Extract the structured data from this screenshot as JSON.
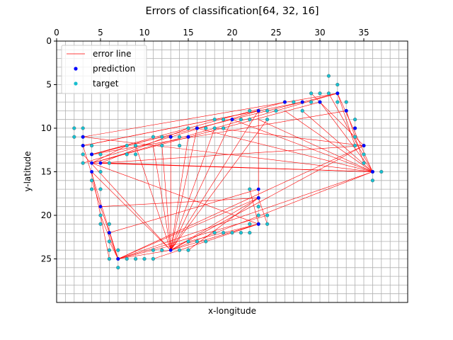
{
  "chart_data": {
    "type": "scatter",
    "title": "Errors of classification[64, 32, 16]",
    "xlabel": "x-longitude",
    "ylabel": "y-latitude",
    "xlim": [
      0,
      40
    ],
    "ylim": [
      30,
      0
    ],
    "x_axis_position": "top",
    "y_axis_inverted": true,
    "x_ticks": [
      0,
      5,
      10,
      15,
      20,
      25,
      30,
      35
    ],
    "y_ticks": [
      0,
      5,
      10,
      15,
      20,
      25
    ],
    "grid": true,
    "grid_step": 1,
    "legend": {
      "placement": "top-left",
      "entries": [
        {
          "label": "error line",
          "kind": "line",
          "color": "#ff0000"
        },
        {
          "label": "prediction",
          "kind": "point",
          "color": "#0000ff"
        },
        {
          "label": "target",
          "kind": "point",
          "color": "#17becf"
        }
      ]
    },
    "series": [
      {
        "name": "prediction",
        "color": "#0000ff",
        "points": [
          [
            3,
            11
          ],
          [
            3,
            12
          ],
          [
            4,
            13
          ],
          [
            4,
            14
          ],
          [
            5,
            14
          ],
          [
            13,
            11
          ],
          [
            16,
            10
          ],
          [
            23,
            8
          ],
          [
            28,
            7
          ],
          [
            32,
            6
          ],
          [
            33,
            8
          ],
          [
            34,
            10
          ],
          [
            35,
            12
          ],
          [
            36,
            15
          ],
          [
            23,
            17
          ],
          [
            23,
            18
          ],
          [
            23,
            21
          ],
          [
            7,
            25
          ],
          [
            13,
            24
          ],
          [
            4,
            15
          ],
          [
            5,
            19
          ],
          [
            6,
            22
          ],
          [
            15,
            11
          ],
          [
            20,
            9
          ],
          [
            26,
            7
          ],
          [
            30,
            7
          ]
        ]
      },
      {
        "name": "target",
        "color": "#17becf",
        "points": [
          [
            2,
            10
          ],
          [
            2,
            11
          ],
          [
            3,
            10
          ],
          [
            3,
            12
          ],
          [
            3,
            13
          ],
          [
            3,
            14
          ],
          [
            4,
            12
          ],
          [
            4,
            13
          ],
          [
            4,
            16
          ],
          [
            4,
            17
          ],
          [
            5,
            13
          ],
          [
            5,
            15
          ],
          [
            5,
            17
          ],
          [
            5,
            20
          ],
          [
            5,
            21
          ],
          [
            6,
            21
          ],
          [
            6,
            22
          ],
          [
            6,
            23
          ],
          [
            6,
            24
          ],
          [
            6,
            25
          ],
          [
            7,
            24
          ],
          [
            7,
            25
          ],
          [
            7,
            26
          ],
          [
            8,
            25
          ],
          [
            9,
            25
          ],
          [
            10,
            25
          ],
          [
            11,
            25
          ],
          [
            11,
            24
          ],
          [
            12,
            24
          ],
          [
            14,
            24
          ],
          [
            15,
            24
          ],
          [
            15,
            23
          ],
          [
            16,
            23
          ],
          [
            17,
            23
          ],
          [
            18,
            22
          ],
          [
            19,
            22
          ],
          [
            20,
            22
          ],
          [
            21,
            22
          ],
          [
            22,
            22
          ],
          [
            22,
            21
          ],
          [
            23,
            20
          ],
          [
            24,
            20
          ],
          [
            24,
            21
          ],
          [
            23,
            21
          ],
          [
            23,
            19
          ],
          [
            23,
            18
          ],
          [
            22,
            17
          ],
          [
            8,
            12
          ],
          [
            8,
            13
          ],
          [
            9,
            12
          ],
          [
            9,
            13
          ],
          [
            11,
            11
          ],
          [
            12,
            12
          ],
          [
            12,
            11
          ],
          [
            13,
            11
          ],
          [
            14,
            11
          ],
          [
            14,
            12
          ],
          [
            15,
            10
          ],
          [
            15,
            11
          ],
          [
            16,
            10
          ],
          [
            17,
            10
          ],
          [
            18,
            9
          ],
          [
            18,
            10
          ],
          [
            19,
            9
          ],
          [
            19,
            10
          ],
          [
            20,
            9
          ],
          [
            21,
            9
          ],
          [
            22,
            8
          ],
          [
            22,
            9
          ],
          [
            23,
            8
          ],
          [
            24,
            8
          ],
          [
            24,
            9
          ],
          [
            25,
            8
          ],
          [
            26,
            7
          ],
          [
            27,
            7
          ],
          [
            28,
            7
          ],
          [
            28,
            8
          ],
          [
            29,
            6
          ],
          [
            29,
            7
          ],
          [
            30,
            6
          ],
          [
            30,
            7
          ],
          [
            31,
            4
          ],
          [
            31,
            6
          ],
          [
            32,
            5
          ],
          [
            32,
            6
          ],
          [
            32,
            7
          ],
          [
            33,
            7
          ],
          [
            33,
            8
          ],
          [
            34,
            9
          ],
          [
            34,
            10
          ],
          [
            34,
            11
          ],
          [
            34,
            12
          ],
          [
            35,
            12
          ],
          [
            35,
            13
          ],
          [
            35,
            14
          ],
          [
            36,
            15
          ],
          [
            36,
            16
          ],
          [
            37,
            15
          ],
          [
            6,
            14
          ],
          [
            3,
            11
          ]
        ]
      }
    ],
    "error_line": {
      "name": "error line",
      "color": "#ff0000",
      "segments": [
        [
          [
            3,
            11
          ],
          [
            32,
            6
          ]
        ],
        [
          [
            3,
            11
          ],
          [
            36,
            15
          ]
        ],
        [
          [
            3,
            12
          ],
          [
            23,
            8
          ]
        ],
        [
          [
            3,
            13
          ],
          [
            13,
            24
          ]
        ],
        [
          [
            4,
            13
          ],
          [
            32,
            6
          ]
        ],
        [
          [
            4,
            14
          ],
          [
            36,
            15
          ]
        ],
        [
          [
            4,
            14
          ],
          [
            30,
            7
          ]
        ],
        [
          [
            4,
            13
          ],
          [
            26,
            7
          ]
        ],
        [
          [
            5,
            14
          ],
          [
            35,
            12
          ]
        ],
        [
          [
            4,
            14
          ],
          [
            23,
            21
          ]
        ],
        [
          [
            4,
            15
          ],
          [
            13,
            24
          ]
        ],
        [
          [
            5,
            19
          ],
          [
            23,
            18
          ]
        ],
        [
          [
            6,
            22
          ],
          [
            23,
            17
          ]
        ],
        [
          [
            7,
            25
          ],
          [
            23,
            18
          ]
        ],
        [
          [
            7,
            25
          ],
          [
            23,
            21
          ]
        ],
        [
          [
            7,
            25
          ],
          [
            24,
            20
          ]
        ],
        [
          [
            7,
            25
          ],
          [
            35,
            12
          ]
        ],
        [
          [
            7,
            25
          ],
          [
            36,
            15
          ]
        ],
        [
          [
            9,
            12
          ],
          [
            13,
            24
          ]
        ],
        [
          [
            11,
            12
          ],
          [
            13,
            24
          ]
        ],
        [
          [
            12,
            12
          ],
          [
            13,
            24
          ]
        ],
        [
          [
            13,
            11
          ],
          [
            13,
            24
          ]
        ],
        [
          [
            15,
            11
          ],
          [
            13,
            24
          ]
        ],
        [
          [
            16,
            10
          ],
          [
            13,
            24
          ]
        ],
        [
          [
            18,
            10
          ],
          [
            13,
            24
          ]
        ],
        [
          [
            20,
            9
          ],
          [
            13,
            24
          ]
        ],
        [
          [
            23,
            8
          ],
          [
            13,
            24
          ]
        ],
        [
          [
            24,
            9
          ],
          [
            13,
            24
          ]
        ],
        [
          [
            13,
            24
          ],
          [
            23,
            18
          ]
        ],
        [
          [
            13,
            24
          ],
          [
            23,
            21
          ]
        ],
        [
          [
            13,
            24
          ],
          [
            36,
            15
          ]
        ],
        [
          [
            13,
            24
          ],
          [
            35,
            12
          ]
        ],
        [
          [
            16,
            10
          ],
          [
            36,
            15
          ]
        ],
        [
          [
            20,
            9
          ],
          [
            36,
            15
          ]
        ],
        [
          [
            23,
            9
          ],
          [
            36,
            15
          ]
        ],
        [
          [
            26,
            8
          ],
          [
            36,
            15
          ]
        ],
        [
          [
            28,
            8
          ],
          [
            36,
            15
          ]
        ],
        [
          [
            30,
            7
          ],
          [
            36,
            15
          ]
        ],
        [
          [
            18,
            10
          ],
          [
            35,
            12
          ]
        ],
        [
          [
            23,
            8
          ],
          [
            23,
            18
          ]
        ],
        [
          [
            5,
            14
          ],
          [
            36,
            15
          ]
        ],
        [
          [
            4,
            13
          ],
          [
            33,
            8
          ]
        ],
        [
          [
            3,
            12
          ],
          [
            28,
            7
          ]
        ],
        [
          [
            3,
            14
          ],
          [
            23,
            8
          ]
        ],
        [
          [
            4,
            16
          ],
          [
            7,
            25
          ]
        ],
        [
          [
            5,
            20
          ],
          [
            7,
            25
          ]
        ],
        [
          [
            6,
            23
          ],
          [
            7,
            25
          ]
        ],
        [
          [
            3,
            12
          ],
          [
            7,
            25
          ]
        ],
        [
          [
            4,
            15
          ],
          [
            6,
            25
          ]
        ],
        [
          [
            8,
            12
          ],
          [
            4,
            14
          ]
        ],
        [
          [
            12,
            11
          ],
          [
            4,
            13
          ]
        ],
        [
          [
            15,
            10
          ],
          [
            5,
            14
          ]
        ],
        [
          [
            7,
            25
          ],
          [
            13,
            24
          ]
        ],
        [
          [
            11,
            25
          ],
          [
            23,
            21
          ]
        ],
        [
          [
            15,
            24
          ],
          [
            23,
            18
          ]
        ],
        [
          [
            32,
            6
          ],
          [
            36,
            15
          ]
        ],
        [
          [
            32,
            6
          ],
          [
            34,
            12
          ]
        ],
        [
          [
            31,
            6
          ],
          [
            36,
            15
          ]
        ],
        [
          [
            29,
            6
          ],
          [
            35,
            12
          ]
        ],
        [
          [
            33,
            8
          ],
          [
            35,
            14
          ]
        ],
        [
          [
            22,
            17
          ],
          [
            23,
            21
          ]
        ],
        [
          [
            23,
            18
          ],
          [
            24,
            21
          ]
        ],
        [
          [
            6,
            14
          ],
          [
            36,
            15
          ]
        ],
        [
          [
            4,
            14
          ],
          [
            32,
            6
          ]
        ]
      ]
    }
  }
}
